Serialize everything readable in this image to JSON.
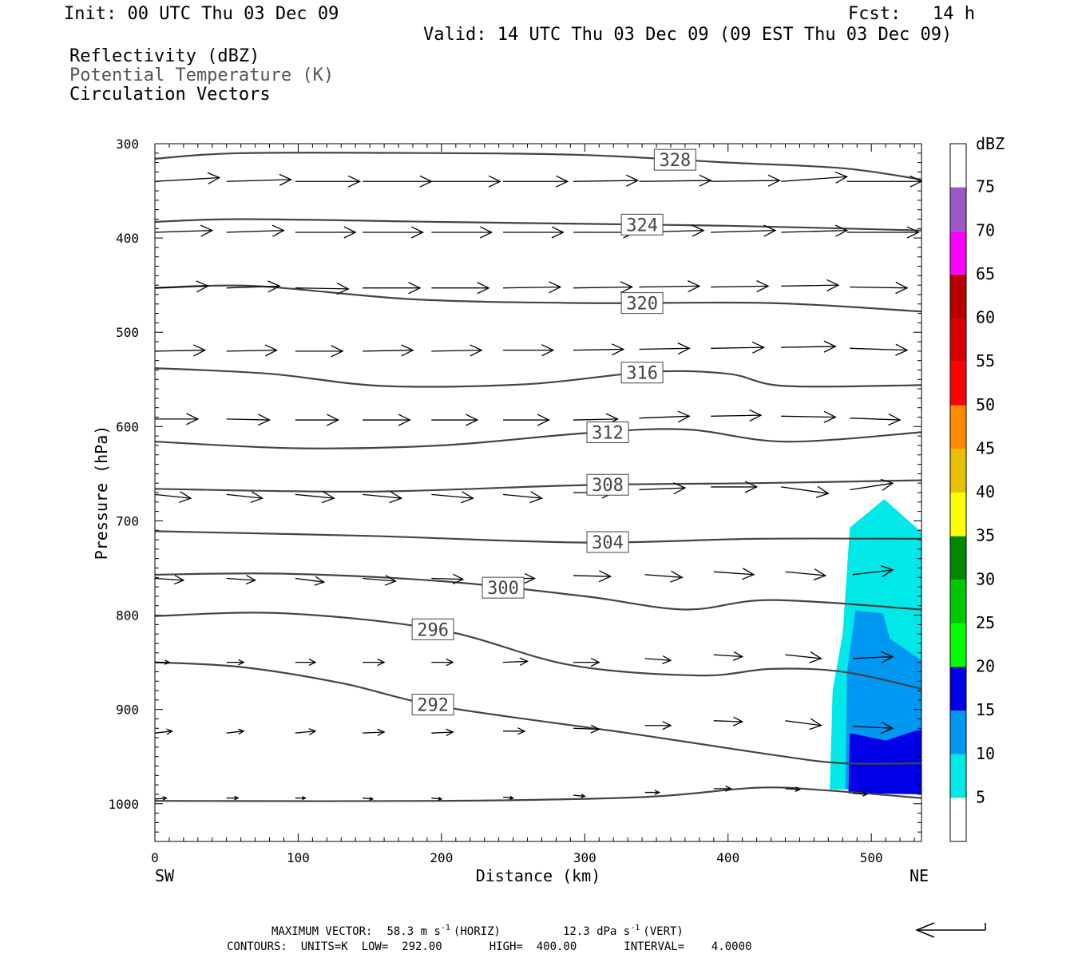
{
  "header": {
    "init": "Init: 00 UTC Thu 03 Dec 09",
    "fcst": "Fcst:   14 h",
    "valid": "Valid: 14 UTC Thu 03 Dec 09 (09 EST Thu 03 Dec 09)",
    "fields": [
      "Reflectivity (dBZ)",
      "Potential Temperature (K)",
      "Circulation Vectors"
    ]
  },
  "colors": {
    "theta_line": "#444444",
    "vector": "#000000"
  },
  "colorbar": {
    "unit": "dBZ",
    "labels": [
      "5",
      "10",
      "15",
      "20",
      "25",
      "30",
      "35",
      "40",
      "45",
      "50",
      "55",
      "60",
      "65",
      "70",
      "75"
    ],
    "colors": [
      "#00e8e8",
      "#0098f0",
      "#0000e8",
      "#00ff00",
      "#00c800",
      "#008800",
      "#ffff00",
      "#e8c000",
      "#ff8c00",
      "#ff0000",
      "#d80000",
      "#b80000",
      "#ff00ff",
      "#9b59c8"
    ]
  },
  "footer": {
    "line1_label": "MAXIMUM VECTOR:",
    "line1_horiz": "58.3 m s",
    "line1_horiz_exp": "-1",
    "line1_horiz_tag": "(HORIZ)",
    "line1_vert": "12.3 dPa s",
    "line1_vert_exp": "-1",
    "line1_vert_tag": "(VERT)",
    "line2": "CONTOURS:  UNITS=K  LOW=  292.00       HIGH=  400.00       INTERVAL=    4.0000"
  },
  "chart_data": {
    "type": "contour",
    "xlabel": "Distance (km)",
    "ylabel": "Pressure (hPa)",
    "xlim": [
      0,
      535
    ],
    "ylim": [
      1040,
      300
    ],
    "x_ticks": [
      "0",
      "100",
      "200",
      "300",
      "400",
      "500"
    ],
    "y_ticks": [
      "300",
      "400",
      "500",
      "600",
      "700",
      "800",
      "900",
      "1000"
    ],
    "x_end_labels": {
      "left": "SW",
      "right": "NE"
    },
    "theta_contours": [
      {
        "label": "328",
        "lx": 363,
        "points": [
          [
            0,
            316
          ],
          [
            60,
            310
          ],
          [
            200,
            310
          ],
          [
            300,
            312
          ],
          [
            400,
            320
          ],
          [
            480,
            326
          ],
          [
            535,
            338
          ]
        ]
      },
      {
        "label": "324",
        "lx": 340,
        "points": [
          [
            0,
            383
          ],
          [
            60,
            380
          ],
          [
            200,
            383
          ],
          [
            300,
            385
          ],
          [
            400,
            387
          ],
          [
            535,
            392
          ]
        ]
      },
      {
        "label": "320",
        "lx": 340,
        "points": [
          [
            0,
            453
          ],
          [
            70,
            451
          ],
          [
            180,
            465
          ],
          [
            300,
            469
          ],
          [
            430,
            469
          ],
          [
            535,
            478
          ]
        ]
      },
      {
        "label": "316",
        "lx": 340,
        "points": [
          [
            0,
            538
          ],
          [
            80,
            544
          ],
          [
            160,
            557
          ],
          [
            260,
            555
          ],
          [
            345,
            542
          ],
          [
            400,
            544
          ],
          [
            440,
            557
          ],
          [
            535,
            556
          ]
        ]
      },
      {
        "label": "312",
        "lx": 316,
        "points": [
          [
            0,
            616
          ],
          [
            100,
            623
          ],
          [
            200,
            620
          ],
          [
            300,
            607
          ],
          [
            370,
            603
          ],
          [
            440,
            616
          ],
          [
            535,
            606
          ]
        ]
      },
      {
        "label": "308",
        "lx": 316,
        "points": [
          [
            0,
            666
          ],
          [
            150,
            669
          ],
          [
            300,
            662
          ],
          [
            420,
            660
          ],
          [
            535,
            657
          ]
        ]
      },
      {
        "label": "304",
        "lx": 316,
        "points": [
          [
            0,
            711
          ],
          [
            150,
            716
          ],
          [
            300,
            723
          ],
          [
            420,
            719
          ],
          [
            535,
            719
          ]
        ]
      },
      {
        "label": "300",
        "lx": 243,
        "points": [
          [
            0,
            757
          ],
          [
            90,
            756
          ],
          [
            200,
            764
          ],
          [
            300,
            780
          ],
          [
            370,
            794
          ],
          [
            430,
            784
          ],
          [
            535,
            794
          ]
        ]
      },
      {
        "label": "296",
        "lx": 194,
        "points": [
          [
            0,
            801
          ],
          [
            90,
            798
          ],
          [
            200,
            816
          ],
          [
            290,
            853
          ],
          [
            380,
            864
          ],
          [
            430,
            857
          ],
          [
            480,
            860
          ],
          [
            535,
            878
          ]
        ]
      },
      {
        "label": "292",
        "lx": 194,
        "points": [
          [
            0,
            850
          ],
          [
            60,
            855
          ],
          [
            130,
            872
          ],
          [
            200,
            897
          ],
          [
            330,
            925
          ],
          [
            430,
            948
          ],
          [
            480,
            957
          ],
          [
            535,
            957
          ]
        ]
      },
      {
        "label": "",
        "lx": 0,
        "points": [
          [
            0,
            997
          ],
          [
            200,
            997
          ],
          [
            340,
            993
          ],
          [
            420,
            983
          ],
          [
            470,
            986
          ],
          [
            535,
            994
          ]
        ]
      }
    ],
    "reflectivity": [
      {
        "dbz": 5,
        "points": [
          [
            471,
            985
          ],
          [
            473,
            880
          ],
          [
            480,
            820
          ],
          [
            485,
            707
          ],
          [
            509,
            677
          ],
          [
            535,
            712
          ],
          [
            535,
            985
          ]
        ]
      },
      {
        "dbz": 10,
        "points": [
          [
            482,
            985
          ],
          [
            483,
            860
          ],
          [
            489,
            795
          ],
          [
            508,
            798
          ],
          [
            513,
            825
          ],
          [
            535,
            848
          ],
          [
            535,
            985
          ]
        ]
      },
      {
        "dbz": 15,
        "points": [
          [
            484,
            989
          ],
          [
            485,
            925
          ],
          [
            510,
            933
          ],
          [
            532,
            922
          ],
          [
            535,
            922
          ],
          [
            535,
            990
          ]
        ]
      }
    ],
    "vector_rows": [
      {
        "p": 340,
        "vecs": [
          [
            0,
            340,
            45,
            336
          ],
          [
            50,
            340,
            95,
            338
          ],
          [
            98,
            340,
            143,
            340
          ],
          [
            145,
            340,
            193,
            340
          ],
          [
            193,
            340,
            241,
            340
          ],
          [
            243,
            340,
            288,
            340
          ],
          [
            292,
            340,
            337,
            339
          ],
          [
            338,
            340,
            388,
            339
          ],
          [
            388,
            340,
            436,
            339
          ],
          [
            437,
            340,
            483,
            335
          ],
          [
            483,
            340,
            535,
            340
          ]
        ]
      },
      {
        "p": 395,
        "vecs": [
          [
            0,
            394,
            40,
            392
          ],
          [
            50,
            394,
            90,
            392
          ],
          [
            98,
            394,
            140,
            394
          ],
          [
            145,
            394,
            187,
            394
          ],
          [
            193,
            394,
            235,
            394
          ],
          [
            243,
            394,
            285,
            394
          ],
          [
            292,
            394,
            335,
            394
          ],
          [
            338,
            394,
            383,
            392
          ],
          [
            388,
            394,
            433,
            392
          ],
          [
            437,
            394,
            483,
            392
          ],
          [
            483,
            394,
            533,
            394
          ]
        ]
      },
      {
        "p": 453,
        "vecs": [
          [
            0,
            453,
            37,
            451
          ],
          [
            50,
            453,
            87,
            451
          ],
          [
            98,
            453,
            135,
            454
          ],
          [
            145,
            453,
            185,
            453
          ],
          [
            193,
            453,
            233,
            453
          ],
          [
            243,
            453,
            283,
            452
          ],
          [
            292,
            453,
            333,
            452
          ],
          [
            338,
            452,
            380,
            451
          ],
          [
            388,
            452,
            428,
            451
          ],
          [
            437,
            451,
            477,
            450
          ],
          [
            485,
            452,
            525,
            453
          ]
        ]
      },
      {
        "p": 520,
        "vecs": [
          [
            0,
            520,
            35,
            519
          ],
          [
            50,
            520,
            85,
            519
          ],
          [
            98,
            520,
            131,
            520
          ],
          [
            145,
            520,
            180,
            519
          ],
          [
            193,
            520,
            228,
            519
          ],
          [
            243,
            519,
            278,
            519
          ],
          [
            292,
            519,
            327,
            518
          ],
          [
            338,
            518,
            373,
            517
          ],
          [
            388,
            517,
            425,
            516
          ],
          [
            437,
            516,
            475,
            515
          ],
          [
            485,
            517,
            525,
            519
          ]
        ]
      },
      {
        "p": 592,
        "vecs": [
          [
            0,
            592,
            30,
            592
          ],
          [
            50,
            592,
            80,
            593
          ],
          [
            98,
            593,
            128,
            593
          ],
          [
            145,
            593,
            178,
            593
          ],
          [
            193,
            593,
            225,
            593
          ],
          [
            243,
            593,
            275,
            593
          ],
          [
            292,
            593,
            323,
            592
          ],
          [
            338,
            591,
            373,
            589
          ],
          [
            388,
            589,
            423,
            588
          ],
          [
            437,
            589,
            475,
            590
          ],
          [
            485,
            591,
            520,
            593
          ]
        ]
      },
      {
        "p": 674,
        "vecs": [
          [
            0,
            672,
            25,
            676
          ],
          [
            50,
            672,
            75,
            676
          ],
          [
            98,
            672,
            125,
            676
          ],
          [
            145,
            672,
            172,
            676
          ],
          [
            193,
            672,
            222,
            676
          ],
          [
            243,
            672,
            270,
            676
          ],
          [
            292,
            670,
            320,
            670
          ],
          [
            338,
            667,
            370,
            665
          ],
          [
            388,
            664,
            420,
            664
          ],
          [
            437,
            664,
            470,
            671
          ],
          [
            485,
            667,
            515,
            660
          ]
        ]
      },
      {
        "p": 763,
        "vecs": [
          [
            0,
            761,
            20,
            763
          ],
          [
            50,
            761,
            70,
            763
          ],
          [
            98,
            761,
            118,
            765
          ],
          [
            145,
            761,
            168,
            764
          ],
          [
            193,
            761,
            215,
            762
          ],
          [
            243,
            761,
            265,
            761
          ],
          [
            292,
            758,
            318,
            759
          ],
          [
            342,
            757,
            368,
            760
          ],
          [
            390,
            754,
            418,
            757
          ],
          [
            440,
            754,
            468,
            758
          ],
          [
            487,
            757,
            515,
            752
          ]
        ]
      },
      {
        "p": 850,
        "vecs": [
          [
            0,
            850,
            10,
            850
          ],
          [
            50,
            850,
            62,
            850
          ],
          [
            98,
            850,
            112,
            850
          ],
          [
            145,
            850,
            160,
            850
          ],
          [
            193,
            850,
            208,
            850
          ],
          [
            243,
            850,
            260,
            849
          ],
          [
            292,
            850,
            310,
            850
          ],
          [
            342,
            846,
            360,
            848
          ],
          [
            390,
            842,
            410,
            844
          ],
          [
            440,
            842,
            465,
            846
          ],
          [
            487,
            846,
            515,
            844
          ]
        ]
      },
      {
        "p": 925,
        "vecs": [
          [
            0,
            925,
            12,
            923
          ],
          [
            50,
            925,
            62,
            923
          ],
          [
            98,
            925,
            112,
            923
          ],
          [
            145,
            925,
            160,
            924
          ],
          [
            193,
            925,
            208,
            924
          ],
          [
            243,
            923,
            258,
            923
          ],
          [
            292,
            920,
            310,
            921
          ],
          [
            342,
            917,
            360,
            917
          ],
          [
            390,
            912,
            410,
            913
          ],
          [
            440,
            912,
            465,
            917
          ],
          [
            487,
            918,
            515,
            920
          ]
        ]
      },
      {
        "p": 998,
        "vecs": [
          [
            0,
            995,
            8,
            994
          ],
          [
            50,
            994,
            58,
            994
          ],
          [
            98,
            994,
            105,
            994
          ],
          [
            145,
            994,
            152,
            995
          ],
          [
            193,
            994,
            200,
            995
          ],
          [
            243,
            993,
            250,
            994
          ],
          [
            292,
            991,
            300,
            992
          ],
          [
            342,
            988,
            352,
            988
          ],
          [
            390,
            984,
            402,
            984
          ],
          [
            440,
            984,
            450,
            985
          ],
          [
            487,
            989,
            497,
            990
          ]
        ]
      }
    ]
  }
}
